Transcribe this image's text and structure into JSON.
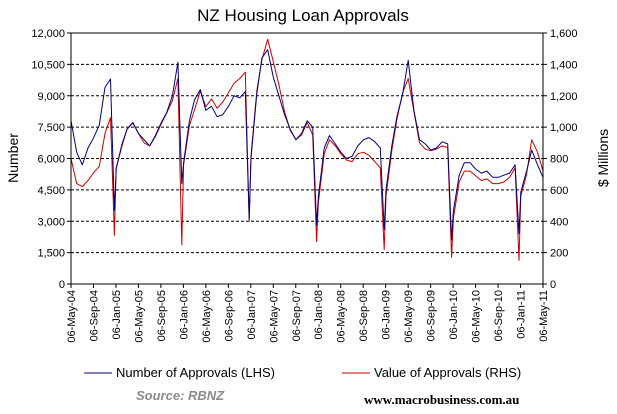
{
  "chart_data": {
    "type": "line",
    "title": "NZ Housing Loan Approvals",
    "ylabel": "Number",
    "y2label": "$ Millions",
    "ylim": [
      0,
      12000
    ],
    "y2lim": [
      0,
      1600
    ],
    "yticks": [
      "0",
      "1,500",
      "3,000",
      "4,500",
      "6,000",
      "7,500",
      "9,000",
      "10,500",
      "12,000"
    ],
    "y2ticks": [
      "0",
      "200",
      "400",
      "600",
      "800",
      "1,000",
      "1,200",
      "1,400",
      "1,600"
    ],
    "xticks": [
      "06-May-04",
      "06-Sep-04",
      "06-Jan-05",
      "06-May-05",
      "06-Sep-05",
      "06-Jan-06",
      "06-May-06",
      "06-Sep-06",
      "06-Jan-07",
      "06-May-07",
      "06-Sep-07",
      "06-Jan-08",
      "06-May-08",
      "06-Sep-08",
      "06-Jan-09",
      "06-May-09",
      "06-Sep-09",
      "06-Jan-10",
      "06-May-10",
      "06-Sep-10",
      "06-Jan-11",
      "06-May-11"
    ],
    "grid": "horizontal dashed",
    "legend": "bottom",
    "series": [
      {
        "name": "Number of Approvals (LHS)",
        "axis": "left",
        "color": "#000080",
        "x": [
          "2004-05-06",
          "2004-06-06",
          "2004-07-06",
          "2004-08-06",
          "2004-09-06",
          "2004-10-06",
          "2004-11-06",
          "2004-12-06",
          "2004-12-27",
          "2005-01-06",
          "2005-02-06",
          "2005-03-06",
          "2005-04-06",
          "2005-05-06",
          "2005-06-06",
          "2005-07-06",
          "2005-08-06",
          "2005-09-06",
          "2005-10-06",
          "2005-11-06",
          "2005-12-06",
          "2005-12-27",
          "2006-01-06",
          "2006-02-06",
          "2006-03-06",
          "2006-04-06",
          "2006-05-06",
          "2006-06-06",
          "2006-07-06",
          "2006-08-06",
          "2006-09-06",
          "2006-10-06",
          "2006-11-06",
          "2006-12-06",
          "2006-12-27",
          "2007-01-06",
          "2007-02-06",
          "2007-03-06",
          "2007-04-06",
          "2007-05-06",
          "2007-06-06",
          "2007-07-06",
          "2007-08-06",
          "2007-09-06",
          "2007-10-06",
          "2007-11-06",
          "2007-12-06",
          "2007-12-27",
          "2008-01-06",
          "2008-02-06",
          "2008-03-06",
          "2008-04-06",
          "2008-05-06",
          "2008-06-06",
          "2008-07-06",
          "2008-08-06",
          "2008-09-06",
          "2008-10-06",
          "2008-11-06",
          "2008-12-06",
          "2008-12-27",
          "2009-01-06",
          "2009-02-06",
          "2009-03-06",
          "2009-04-06",
          "2009-05-06",
          "2009-06-06",
          "2009-07-06",
          "2009-08-06",
          "2009-09-06",
          "2009-10-06",
          "2009-11-06",
          "2009-12-06",
          "2009-12-27",
          "2010-01-06",
          "2010-02-06",
          "2010-03-06",
          "2010-04-06",
          "2010-05-06",
          "2010-06-06",
          "2010-07-06",
          "2010-08-06",
          "2010-09-06",
          "2010-10-06",
          "2010-11-06",
          "2010-12-06",
          "2010-12-27",
          "2011-01-06",
          "2011-02-06",
          "2011-03-06",
          "2011-04-06",
          "2011-05-06"
        ],
        "values": [
          7800,
          6300,
          5700,
          6500,
          7000,
          7600,
          9400,
          9800,
          3500,
          5500,
          6700,
          7400,
          7700,
          7200,
          6900,
          6600,
          7100,
          7700,
          8200,
          9000,
          10600,
          4800,
          5800,
          7800,
          8800,
          9300,
          8300,
          8500,
          8000,
          8100,
          8500,
          9000,
          8900,
          9200,
          3100,
          6000,
          9100,
          10800,
          11200,
          9900,
          9000,
          8100,
          7400,
          6900,
          7200,
          7800,
          7500,
          2800,
          4200,
          6500,
          7100,
          6700,
          6300,
          6000,
          6100,
          6600,
          6900,
          7000,
          6800,
          6500,
          2600,
          4500,
          6600,
          8000,
          9100,
          10700,
          8300,
          6900,
          6700,
          6400,
          6500,
          6800,
          6700,
          2100,
          3500,
          5200,
          5800,
          5800,
          5500,
          5300,
          5400,
          5100,
          5100,
          5200,
          5300,
          5700,
          2400,
          4400,
          5400,
          6400,
          5700,
          5100
        ]
      },
      {
        "name": "Value of Approvals (RHS)",
        "axis": "right",
        "color": "#cc0000",
        "x": [
          "2004-05-06",
          "2004-06-06",
          "2004-07-06",
          "2004-08-06",
          "2004-09-06",
          "2004-10-06",
          "2004-11-06",
          "2004-12-06",
          "2004-12-27",
          "2005-01-06",
          "2005-02-06",
          "2005-03-06",
          "2005-04-06",
          "2005-05-06",
          "2005-06-06",
          "2005-07-06",
          "2005-08-06",
          "2005-09-06",
          "2005-10-06",
          "2005-11-06",
          "2005-12-06",
          "2005-12-27",
          "2006-01-06",
          "2006-02-06",
          "2006-03-06",
          "2006-04-06",
          "2006-05-06",
          "2006-06-06",
          "2006-07-06",
          "2006-08-06",
          "2006-09-06",
          "2006-10-06",
          "2006-11-06",
          "2006-12-06",
          "2006-12-27",
          "2007-01-06",
          "2007-02-06",
          "2007-03-06",
          "2007-04-06",
          "2007-05-06",
          "2007-06-06",
          "2007-07-06",
          "2007-08-06",
          "2007-09-06",
          "2007-10-06",
          "2007-11-06",
          "2007-12-06",
          "2007-12-27",
          "2008-01-06",
          "2008-02-06",
          "2008-03-06",
          "2008-04-06",
          "2008-05-06",
          "2008-06-06",
          "2008-07-06",
          "2008-08-06",
          "2008-09-06",
          "2008-10-06",
          "2008-11-06",
          "2008-12-06",
          "2008-12-27",
          "2009-01-06",
          "2009-02-06",
          "2009-03-06",
          "2009-04-06",
          "2009-05-06",
          "2009-06-06",
          "2009-07-06",
          "2009-08-06",
          "2009-09-06",
          "2009-10-06",
          "2009-11-06",
          "2009-12-06",
          "2009-12-27",
          "2010-01-06",
          "2010-02-06",
          "2010-03-06",
          "2010-04-06",
          "2010-05-06",
          "2010-06-06",
          "2010-07-06",
          "2010-08-06",
          "2010-09-06",
          "2010-10-06",
          "2010-11-06",
          "2010-12-06",
          "2010-12-27",
          "2011-01-06",
          "2011-02-06",
          "2011-03-06",
          "2011-04-06",
          "2011-05-06"
        ],
        "values": [
          800,
          640,
          620,
          660,
          710,
          750,
          960,
          1060,
          310,
          740,
          880,
          990,
          1030,
          960,
          900,
          880,
          940,
          1020,
          1090,
          1170,
          1310,
          250,
          760,
          1010,
          1110,
          1230,
          1130,
          1180,
          1120,
          1160,
          1220,
          1280,
          1310,
          1350,
          400,
          820,
          1230,
          1430,
          1560,
          1420,
          1270,
          1100,
          980,
          920,
          950,
          1030,
          950,
          270,
          520,
          830,
          920,
          880,
          830,
          790,
          780,
          830,
          840,
          820,
          780,
          740,
          220,
          560,
          850,
          1050,
          1220,
          1310,
          1100,
          900,
          860,
          850,
          860,
          880,
          870,
          170,
          420,
          650,
          720,
          720,
          690,
          660,
          670,
          640,
          640,
          650,
          680,
          740,
          150,
          560,
          700,
          920,
          840,
          720
        ]
      }
    ],
    "source": "Source: RBNZ",
    "website": "www.macrobusiness.com.au"
  }
}
